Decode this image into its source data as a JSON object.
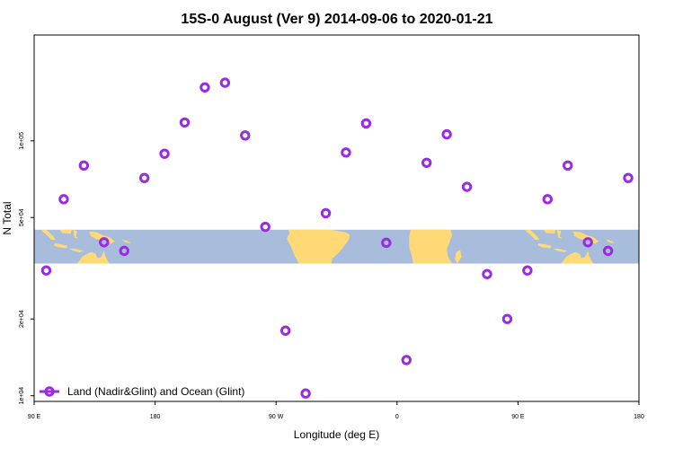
{
  "chart_data": {
    "type": "scatter",
    "title": "15S-0 August (Ver 9)   2014-09-06 to 2020-01-21",
    "xlabel": "Longitude (deg E)",
    "ylabel": "N Total",
    "x_axis": {
      "range": [
        90,
        540
      ],
      "ticks": [
        {
          "value": 90,
          "label": "90 E"
        },
        {
          "value": 180,
          "label": "180"
        },
        {
          "value": 270,
          "label": "90 W"
        },
        {
          "value": 360,
          "label": "0"
        },
        {
          "value": 450,
          "label": "90 E"
        },
        {
          "value": 540,
          "label": "180"
        }
      ]
    },
    "y_axis": {
      "scale": "log",
      "range": [
        9500,
        260000
      ],
      "ticks": [
        {
          "value": 10000,
          "label": "1e+04"
        },
        {
          "value": 20000,
          "label": "2e+04"
        },
        {
          "value": 50000,
          "label": "5e+04"
        },
        {
          "value": 100000,
          "label": "1e+05"
        }
      ]
    },
    "map_strip": {
      "lat_range": "15S-0",
      "y_bottom": 33000,
      "y_top": 44800,
      "ocean_color": "#a7bddb",
      "land_color": "#ffd976"
    },
    "series": [
      {
        "name": "Land (Nadir&Glint) and Ocean (Glint)",
        "color": "#9a2be2",
        "x": [
          99,
          112,
          127,
          142,
          157,
          172,
          187,
          202,
          217,
          232,
          247,
          262,
          277,
          292,
          307,
          322,
          337,
          352,
          367,
          382,
          397,
          412,
          427,
          442,
          457,
          472,
          487,
          502,
          517,
          532
        ],
        "y": [
          31000,
          59000,
          80000,
          40000,
          37000,
          71500,
          89000,
          118000,
          162000,
          169000,
          105000,
          46000,
          18000,
          10200,
          52000,
          90000,
          117000,
          39800,
          13800,
          82000,
          106000,
          66000,
          30000,
          20000,
          31000,
          59000,
          80000,
          40000,
          37000,
          71500
        ]
      }
    ],
    "legend": {
      "placement": "bottom-left",
      "label": "Land (Nadir&Glint) and Ocean (Glint)"
    },
    "colors": {
      "point": "#9a2be2",
      "axis": "#000000",
      "background": "#ffffff"
    }
  }
}
